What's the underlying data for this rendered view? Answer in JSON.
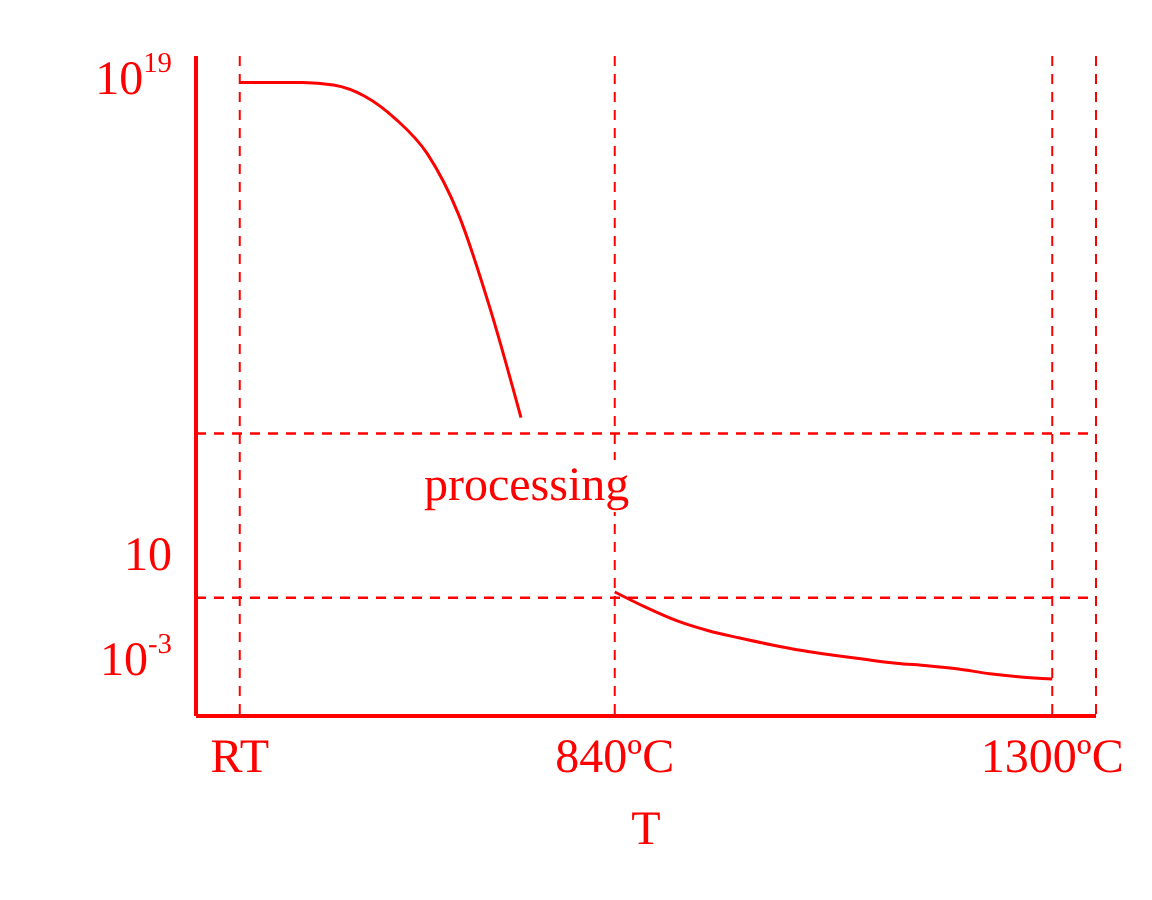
{
  "chart_data": {
    "type": "line",
    "xlabel": "T",
    "log": "y",
    "categories": [
      "RT",
      null,
      null,
      null,
      null,
      null,
      null,
      null,
      null,
      null,
      null,
      null,
      "840ºC",
      null,
      null,
      null,
      null,
      null,
      null,
      null,
      null,
      null,
      null,
      null,
      null,
      null,
      "1300ºC"
    ],
    "series": [
      {
        "color": "#ff0000",
        "values": [
          1e+19,
          1e+19,
          1e+19,
          8e+18,
          3e+18,
          4e+17,
          2e+16,
          100000000000000.0,
          30000000000.0,
          2000000.0,
          null,
          null,
          0.5,
          0.13,
          0.04,
          0.017,
          0.009,
          0.005,
          0.003,
          0.002,
          0.0014,
          0.001,
          0.0008,
          0.0006,
          0.0004,
          0.0003,
          0.00025
        ]
      }
    ],
    "ylim": [
      1e-05,
      1e+20
    ],
    "yticks": [
      {
        "value": 0.001,
        "label": "10$^{-3}$"
      },
      10,
      {
        "value": 1e+19,
        "label": "10$^{19}$"
      }
    ],
    "grid": "x",
    "marker": "none",
    "line_style": "solid",
    "ref_lines": [
      {
        "axis": "y",
        "value": 500000.0,
        "color": "#ff0000",
        "line_style": "dashed"
      },
      {
        "axis": "y",
        "value": 0.3,
        "color": "#ff0000",
        "line_style": "dashed"
      }
    ],
    "annotations": [
      "processing"
    ]
  }
}
